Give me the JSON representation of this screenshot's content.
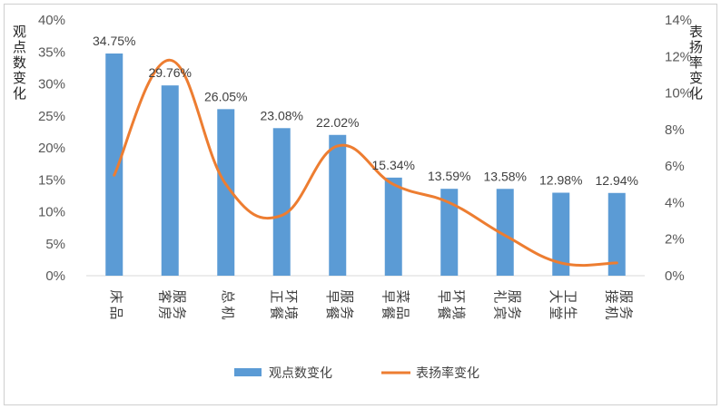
{
  "chart_data": {
    "type": "bar",
    "categories": [
      "床品",
      "客房服务",
      "总机",
      "正餐环境",
      "早餐服务",
      "早餐菜品",
      "早餐环境",
      "礼宾服务",
      "大堂卫生",
      "接机服务"
    ],
    "series": [
      {
        "name": "观点数变化",
        "type": "bar",
        "axis": "left",
        "values": [
          34.75,
          29.76,
          26.05,
          23.08,
          22.02,
          15.34,
          13.59,
          13.58,
          12.98,
          12.94
        ],
        "data_labels": [
          "34.75%",
          "29.76%",
          "26.05%",
          "23.08%",
          "22.02%",
          "15.34%",
          "13.59%",
          "13.58%",
          "12.98%",
          "12.94%"
        ],
        "color": "#5B9BD5"
      },
      {
        "name": "表扬率变化",
        "type": "line",
        "axis": "right",
        "smooth": true,
        "values": [
          5.5,
          11.8,
          5.0,
          3.3,
          7.1,
          5.0,
          4.0,
          2.2,
          0.7,
          0.7
        ],
        "color": "#ED7D31"
      }
    ],
    "ylabel": "观点数变化",
    "y2label": "表扬率变化",
    "ylim": [
      0,
      40
    ],
    "y2lim": [
      0,
      14
    ],
    "yticks": [
      "0%",
      "5%",
      "10%",
      "15%",
      "20%",
      "25%",
      "30%",
      "35%",
      "40%"
    ],
    "y2ticks": [
      "0%",
      "2%",
      "4%",
      "6%",
      "8%",
      "10%",
      "12%",
      "14%"
    ],
    "grid": false,
    "legend_position": "bottom"
  }
}
